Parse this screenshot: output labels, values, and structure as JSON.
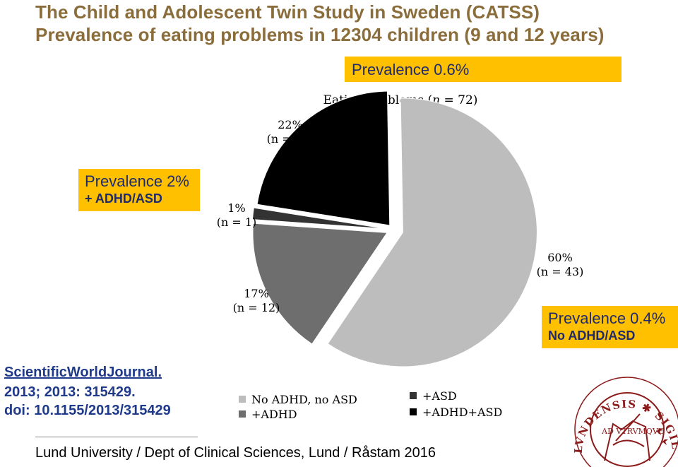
{
  "titles": {
    "line1": "The Child and Adolescent Twin Study in Sweden (CATSS)",
    "line2": "Prevalence of eating problems in 12304 children (9 and 12 years)"
  },
  "callouts": {
    "top": "Prevalence 0.6%",
    "left_main": "Prevalence 2%",
    "left_sub": "+ ADHD/ASD",
    "right_main": "Prevalence 0.4%",
    "right_sub": "No ADHD/ASD"
  },
  "reference": {
    "line1": "ScientificWorldJournal.",
    "line2": "2013; 2013: 315429.",
    "line3": "doi: 10.1155/2013/315429"
  },
  "footer": "Lund University / Dept of Clinical Sciences, Lund / Råstam 2016",
  "seal": {
    "text": "LVNDENSIS ✱ SIGILL ✱ ACADEMIAE ✱",
    "inner_text": "AD VTRVMQVE"
  },
  "chart_data": {
    "type": "pie",
    "title": "Eating problems (n = 72)",
    "slices": [
      {
        "label": "No ADHD, no ASD",
        "percent": "60%",
        "n": "(n = 43)",
        "value": 43,
        "color": "#bdbdbd"
      },
      {
        "label": "+ADHD",
        "percent": "17%",
        "n": "(n = 12)",
        "value": 12,
        "color": "#6e6e6e"
      },
      {
        "label": "+ASD",
        "percent": "1%",
        "n": "(n = 1)",
        "value": 1,
        "color": "#333333"
      },
      {
        "label": "+ADHD+ASD",
        "percent": "22%",
        "n": "(n = 16)",
        "value": 16,
        "color": "#000000"
      }
    ],
    "legend": {
      "placement": "bottom",
      "items": [
        {
          "label": "No ADHD, no ASD",
          "color": "#bdbdbd"
        },
        {
          "label": "+ADHD",
          "color": "#6e6e6e"
        },
        {
          "label": "+ASD",
          "color": "#333333"
        },
        {
          "label": "+ADHD+ASD",
          "color": "#000000"
        }
      ]
    }
  }
}
